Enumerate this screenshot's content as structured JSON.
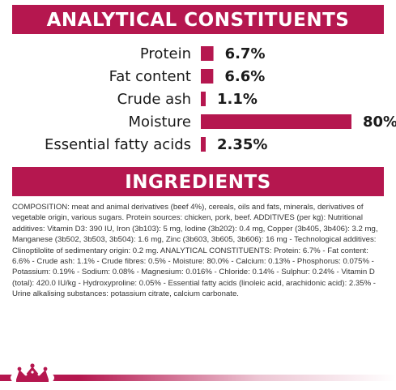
{
  "analytical_title": "ANALYTICAL CONSTITUENTS",
  "ingredients_title": "INGREDIENTS",
  "chart_data": {
    "type": "bar",
    "orientation": "horizontal",
    "categories": [
      "Protein",
      "Fat content",
      "Crude ash",
      "Moisture",
      "Essential fatty acids"
    ],
    "values": [
      6.7,
      6.6,
      1.1,
      80,
      2.35
    ],
    "value_labels": [
      "6.7%",
      "6.6%",
      "1.1%",
      "80%",
      "2.35%"
    ],
    "color": "#b5174f"
  },
  "ingredients_text": "COMPOSITION: meat and animal derivatives (beef 4%), cereals, oils and fats, minerals, derivatives of vegetable origin, various sugars. Protein sources: chicken, pork, beef. ADDITIVES (per kg): Nutritional additives: Vitamin D3: 390 IU, Iron (3b103): 5 mg, Iodine (3b202): 0.4 mg, Copper (3b405, 3b406): 3.2 mg, Manganese (3b502, 3b503, 3b504): 1.6 mg, Zinc (3b603, 3b605, 3b606): 16 mg - Technological additives: Clinoptilolite of sedimentary origin: 0.2 mg. ANALYTICAL CONSTITUENTS: Protein: 6.7% - Fat content: 6.6% - Crude ash: 1.1% - Crude fibres: 0.5% - Moisture: 80.0% - Calcium: 0.13% - Phosphorus: 0.075% - Potassium: 0.19% - Sodium: 0.08% - Magnesium: 0.016% - Chloride: 0.14% - Sulphur: 0.24% - Vitamin D (total): 420.0 IU/kg - Hydroxyproline: 0.05% - Essential fatty acids (linoleic acid, arachidonic acid): 2.35% - Urine alkalising substances: potassium citrate, calcium carbonate.",
  "colors": {
    "brand": "#b5174f",
    "text": "#1a1a1a"
  },
  "footer_icon": "royal-canin-crown-icon"
}
